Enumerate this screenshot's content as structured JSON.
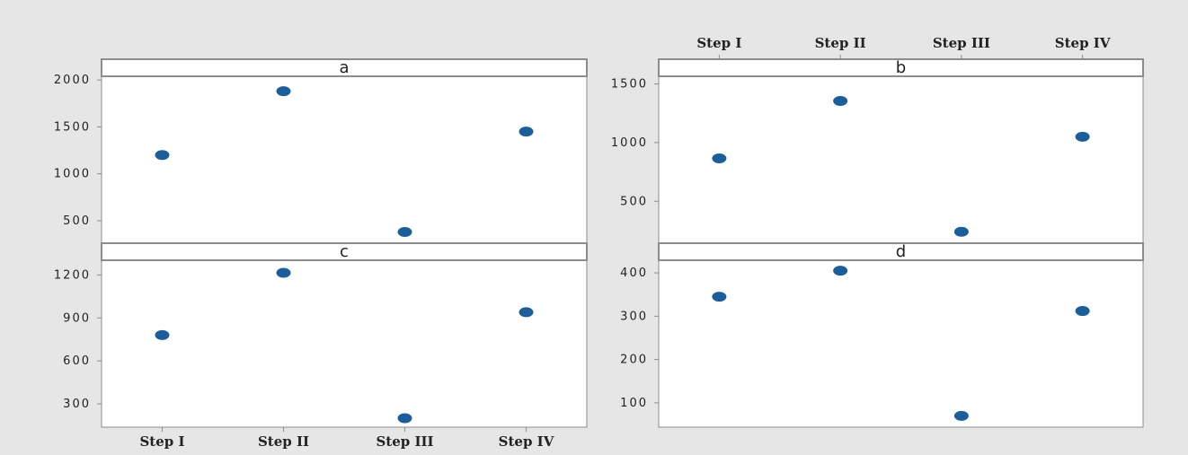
{
  "colors": {
    "background": "#e6e6e6",
    "panel": "#ffffff",
    "frame": "#8c8c8c",
    "marker": "#1a5e9c",
    "text": "#222222"
  },
  "chart_data": [
    {
      "type": "scatter",
      "panel": "a",
      "categories": [
        "Step I",
        "Step II",
        "Step III",
        "Step IV"
      ],
      "values": [
        1200,
        1880,
        380,
        1450
      ],
      "yticks": [
        500,
        1000,
        1500,
        2000
      ],
      "ytick_labels": [
        "500",
        "1000",
        "1500",
        "2000"
      ],
      "ylim": [
        270,
        2020
      ],
      "show_x_tick_labels": "none",
      "grid": false
    },
    {
      "type": "scatter",
      "panel": "b",
      "categories": [
        "Step I",
        "Step II",
        "Step III",
        "Step IV"
      ],
      "values": [
        865,
        1355,
        240,
        1050
      ],
      "yticks": [
        500,
        1000,
        1500
      ],
      "ytick_labels": [
        "500",
        "1000",
        "1500"
      ],
      "ylim": [
        150,
        1550
      ],
      "show_x_tick_labels": "top",
      "grid": false
    },
    {
      "type": "scatter",
      "panel": "c",
      "categories": [
        "Step I",
        "Step II",
        "Step III",
        "Step IV"
      ],
      "values": [
        780,
        1215,
        200,
        940
      ],
      "yticks": [
        300,
        600,
        900,
        1200
      ],
      "ytick_labels": [
        "300",
        "600",
        "900",
        "1200"
      ],
      "ylim": [
        150,
        1290
      ],
      "show_x_tick_labels": "bottom",
      "grid": false
    },
    {
      "type": "scatter",
      "panel": "d",
      "categories": [
        "Step I",
        "Step II",
        "Step III",
        "Step IV"
      ],
      "values": [
        345,
        405,
        70,
        312
      ],
      "yticks": [
        100,
        200,
        300,
        400
      ],
      "ytick_labels": [
        "100",
        "200",
        "300",
        "400"
      ],
      "ylim": [
        48,
        425
      ],
      "show_x_tick_labels": "none",
      "grid": false
    }
  ]
}
